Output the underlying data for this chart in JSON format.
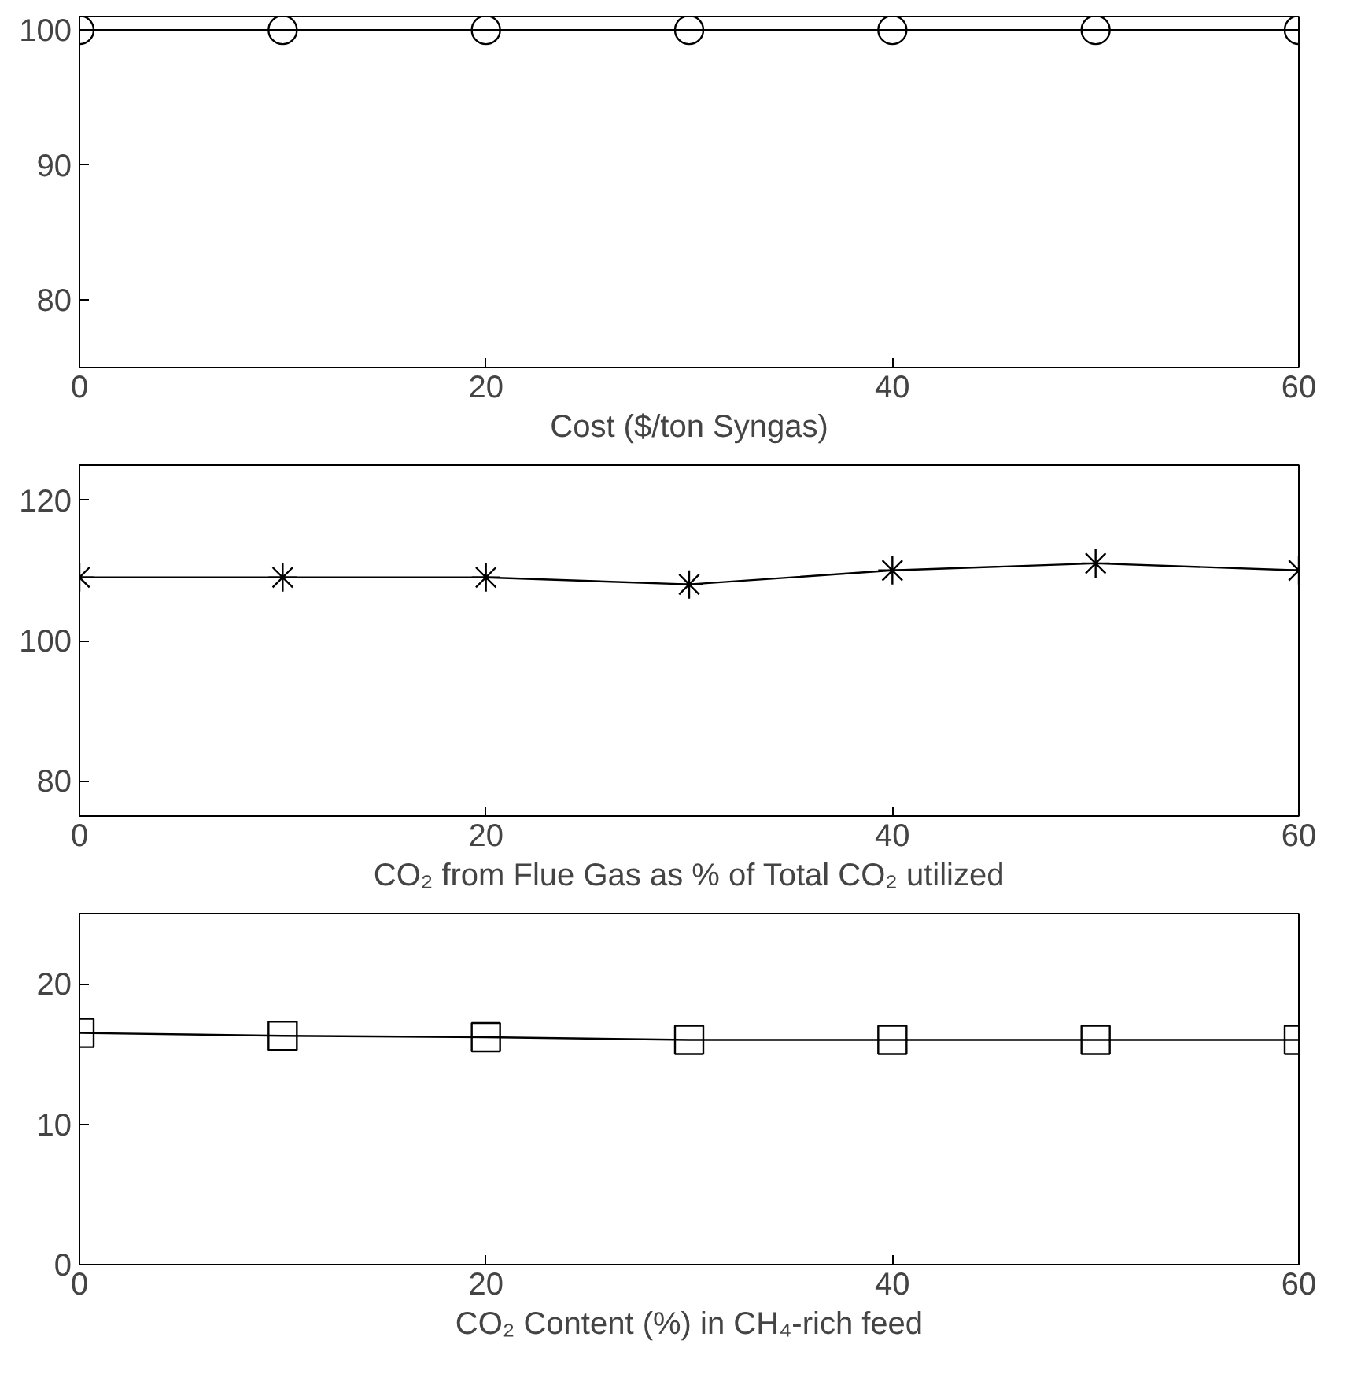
{
  "chart_data": [
    {
      "type": "line",
      "xlabel": "Cost ($/ton Syngas)",
      "x": [
        0,
        10,
        20,
        30,
        40,
        50,
        60
      ],
      "series": [
        {
          "color": "#000000",
          "values": [
            100,
            100,
            100,
            100,
            100,
            100,
            100
          ]
        }
      ],
      "xlim": [
        0,
        60
      ],
      "xticks": [
        0,
        20,
        40,
        60
      ],
      "ylim": [
        75,
        101
      ],
      "yticks": [
        80,
        90,
        100
      ],
      "marker": "circle",
      "line_style": "solid",
      "grid": false
    },
    {
      "type": "line",
      "xlabel": "CO₂ from Flue Gas as % of Total CO₂ utilized",
      "x": [
        0,
        10,
        20,
        30,
        40,
        50,
        60
      ],
      "series": [
        {
          "color": "#000000",
          "values": [
            109,
            109,
            109,
            108,
            110,
            111,
            110
          ]
        }
      ],
      "xlim": [
        0,
        60
      ],
      "xticks": [
        0,
        20,
        40,
        60
      ],
      "ylim": [
        75,
        125
      ],
      "yticks": [
        80,
        100,
        120
      ],
      "marker": "cross",
      "line_style": "solid",
      "grid": false
    },
    {
      "type": "line",
      "xlabel": "CO₂ Content (%) in CH₄-rich feed",
      "x": [
        0,
        10,
        20,
        30,
        40,
        50,
        60
      ],
      "series": [
        {
          "color": "#000000",
          "values": [
            16.5,
            16.3,
            16.2,
            16,
            16,
            16,
            16
          ]
        }
      ],
      "xlim": [
        0,
        60
      ],
      "xticks": [
        0,
        20,
        40,
        60
      ],
      "ylim": [
        0,
        25
      ],
      "yticks": [
        0,
        10,
        20
      ],
      "marker": "square",
      "line_style": "solid",
      "grid": false
    }
  ]
}
